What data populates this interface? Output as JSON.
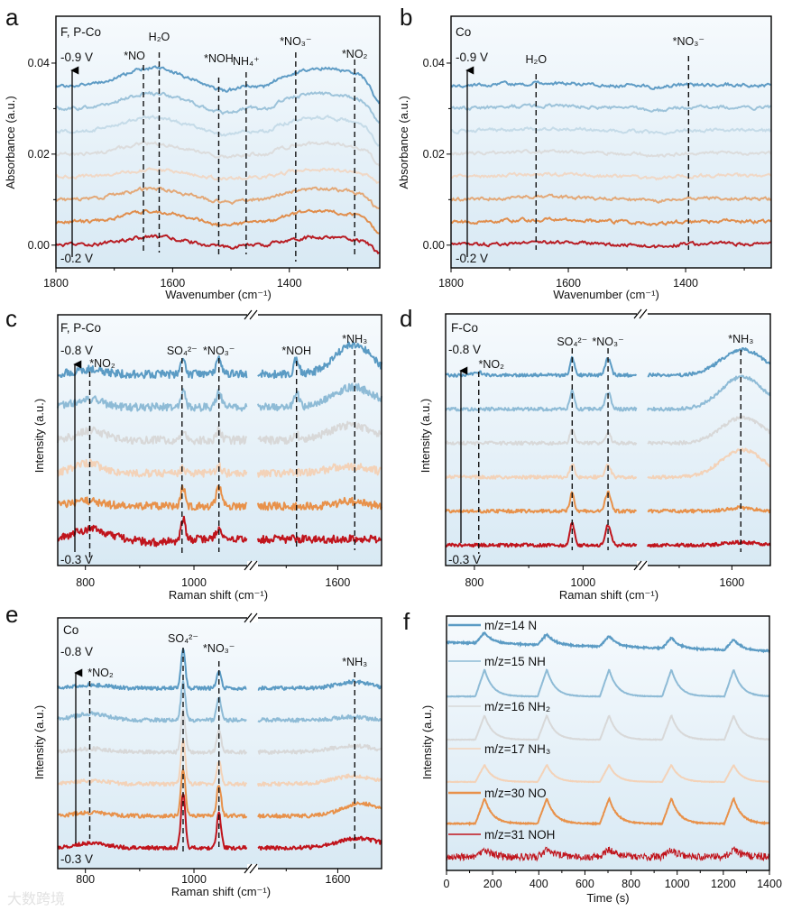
{
  "figure": {
    "watermark": "大数跨境"
  },
  "chart_data": [
    {
      "panel": "a",
      "type": "line",
      "title": "F, P-Co",
      "xlabel": "Wavenumber (cm⁻¹)",
      "ylabel": "Absorbance (a.u.)",
      "xlim": [
        1800,
        1245
      ],
      "ylim": [
        -0.005,
        0.0503
      ],
      "xticks": [
        {
          "v": 1800,
          "label": "1800"
        },
        {
          "v": 1600,
          "label": "1600"
        },
        {
          "v": 1400,
          "label": "1400"
        }
      ],
      "xminor": [
        1700,
        1500,
        1300
      ],
      "yticks": [
        {
          "v": 0,
          "label": "0.00"
        },
        {
          "v": 0.02,
          "label": "0.02"
        },
        {
          "v": 0.04,
          "label": "0.04"
        }
      ],
      "yminor": [
        0.01,
        0.03
      ],
      "potential_start": "-0.2 V",
      "potential_end": "-0.9 V",
      "profile": [
        [
          1635,
          0.003,
          50
        ],
        [
          1345,
          0.003,
          65
        ],
        [
          1440,
          -0.001,
          15
        ],
        [
          1510,
          -0.001,
          25
        ],
        [
          1245,
          -0.004,
          12
        ]
      ],
      "series": [
        {
          "offset": 0.0,
          "scale": 0.6,
          "color": "#b81d24"
        },
        {
          "offset": 0.005,
          "scale": 0.8,
          "color": "#e08d4c"
        },
        {
          "offset": 0.01,
          "scale": 0.8,
          "color": "#e3a877"
        },
        {
          "offset": 0.015,
          "scale": 0.5,
          "color": "#f0d8c6"
        },
        {
          "offset": 0.02,
          "scale": 0.8,
          "color": "#dcdcdc"
        },
        {
          "offset": 0.025,
          "scale": 1.0,
          "color": "#c5dbe8"
        },
        {
          "offset": 0.03,
          "scale": 1.1,
          "color": "#9dc3da"
        },
        {
          "offset": 0.035,
          "scale": 1.3,
          "color": "#5f9cc5"
        }
      ],
      "annotations": [
        {
          "label": "*NO",
          "x": 1650
        },
        {
          "label": "H₂O",
          "x": 1623
        },
        {
          "label": "*NOH",
          "x": 1521
        },
        {
          "label": "NH₄⁺",
          "x": 1474
        },
        {
          "label": "*NO₃⁻",
          "x": 1389
        },
        {
          "label": "*NO₂",
          "x": 1288
        }
      ]
    },
    {
      "panel": "b",
      "type": "line",
      "title": "Co",
      "xlabel": "Wavenumber (cm⁻¹)",
      "ylabel": "Absorbance (a.u.)",
      "xlim": [
        1800,
        1254
      ],
      "ylim": [
        -0.005,
        0.0503
      ],
      "xticks": [
        {
          "v": 1800,
          "label": "1800"
        },
        {
          "v": 1600,
          "label": "1600"
        },
        {
          "v": 1400,
          "label": "1400"
        }
      ],
      "xminor": [
        1700,
        1500,
        1300
      ],
      "yticks": [
        {
          "v": 0,
          "label": "0.00"
        },
        {
          "v": 0.02,
          "label": "0.02"
        },
        {
          "v": 0.04,
          "label": "0.04"
        }
      ],
      "yminor": [
        0.01,
        0.03
      ],
      "potential_start": "-0.2 V",
      "potential_end": "-0.9 V",
      "profile": [
        [
          1640,
          0.0006,
          70
        ],
        [
          1450,
          -0.0005,
          15
        ],
        [
          1330,
          0.0003,
          60
        ]
      ],
      "series": [
        {
          "offset": 0.0,
          "scale": 1,
          "color": "#b81d24"
        },
        {
          "offset": 0.005,
          "scale": 1,
          "color": "#e08d4c"
        },
        {
          "offset": 0.01,
          "scale": 1,
          "color": "#e3a877"
        },
        {
          "offset": 0.015,
          "scale": 1,
          "color": "#f0d8c6"
        },
        {
          "offset": 0.02,
          "scale": 1,
          "color": "#dcdcdc"
        },
        {
          "offset": 0.025,
          "scale": 1,
          "color": "#c5dbe8"
        },
        {
          "offset": 0.03,
          "scale": 1,
          "color": "#9dc3da"
        },
        {
          "offset": 0.035,
          "scale": 1,
          "color": "#5f9cc5"
        }
      ],
      "annotations": [
        {
          "label": "H₂O",
          "x": 1655
        },
        {
          "label": "*NO₃⁻",
          "x": 1395
        }
      ]
    },
    {
      "panel": "c",
      "type": "line",
      "title": "F, P-Co",
      "xlabel": "Raman shift (cm⁻¹)",
      "ylabel": "Intensity (a.u.)",
      "x_segments": [
        [
          749,
          1103
        ],
        [
          1440,
          1685
        ]
      ],
      "ylim": [
        -0.8,
        6.8
      ],
      "xticks": [
        {
          "v": 800,
          "label": "800"
        },
        {
          "v": 1000,
          "label": "1000"
        },
        {
          "v": 1600,
          "label": "1600"
        }
      ],
      "xminor": [
        900,
        1500
      ],
      "potential_start": "-0.3 V",
      "potential_end": "-0.8 V",
      "noise": 0.12,
      "series": [
        {
          "offset": 0,
          "color": "#c0141c",
          "peaks": [
            [
              980,
              0.65,
              4
            ],
            [
              1046,
              0.35,
              5
            ],
            [
              810,
              0.3,
              30
            ],
            [
              930,
              -0.1,
              30
            ]
          ]
        },
        {
          "offset": 1,
          "color": "#e8914a",
          "peaks": [
            [
              980,
              0.55,
              4
            ],
            [
              1046,
              0.55,
              5
            ],
            [
              800,
              0.15,
              30
            ],
            [
              1625,
              0.15,
              25
            ]
          ]
        },
        {
          "offset": 2,
          "color": "#f3d2b8",
          "peaks": [
            [
              980,
              0.15,
              4
            ],
            [
              1046,
              0.2,
              5
            ],
            [
              805,
              0.3,
              25
            ],
            [
              1620,
              0.2,
              40
            ]
          ]
        },
        {
          "offset": 3,
          "color": "#d8d8d8",
          "peaks": [
            [
              980,
              0.25,
              4
            ],
            [
              1046,
              0.3,
              5
            ],
            [
              810,
              0.3,
              25
            ],
            [
              1625,
              0.45,
              40
            ],
            [
              1520,
              0.15,
              5
            ]
          ]
        },
        {
          "offset": 4,
          "color": "#8ebbd6",
          "peaks": [
            [
              980,
              0.55,
              4
            ],
            [
              1046,
              0.45,
              5
            ],
            [
              805,
              0.25,
              25
            ],
            [
              1520,
              0.4,
              5
            ],
            [
              1630,
              0.6,
              40
            ]
          ]
        },
        {
          "offset": 5,
          "color": "#5b9bc4",
          "peaks": [
            [
              980,
              0.45,
              4
            ],
            [
              1046,
              0.45,
              5
            ],
            [
              810,
              0.15,
              25
            ],
            [
              1520,
              0.45,
              5
            ],
            [
              1630,
              0.9,
              35
            ]
          ]
        }
      ],
      "annotations": [
        {
          "label": "*NO₂",
          "x": 808
        },
        {
          "label": "SO₄²⁻",
          "x": 978
        },
        {
          "label": "*NO₃⁻",
          "x": 1046
        },
        {
          "label": "*NOH",
          "x": 1520
        },
        {
          "label": "*NH₃",
          "x": 1633
        }
      ]
    },
    {
      "panel": "d",
      "type": "line",
      "title": "F-Co",
      "xlabel": "Raman shift (cm⁻¹)",
      "ylabel": "Intensity (a.u.)",
      "x_segments": [
        [
          747,
          1104
        ],
        [
          1435,
          1673
        ]
      ],
      "ylim": [
        -0.6,
        6.8
      ],
      "xticks": [
        {
          "v": 800,
          "label": "800"
        },
        {
          "v": 1000,
          "label": "1000"
        },
        {
          "v": 1600,
          "label": "1600"
        }
      ],
      "xminor": [
        900,
        1500
      ],
      "potential_start": "-0.3 V",
      "potential_end": "-0.8 V",
      "noise": 0.05,
      "series": [
        {
          "offset": 0,
          "color": "#c0141c",
          "peaks": [
            [
              980,
              0.67,
              4
            ],
            [
              1046,
              0.6,
              5
            ],
            [
              1617,
              0.08,
              30
            ]
          ]
        },
        {
          "offset": 1,
          "color": "#e8914a",
          "peaks": [
            [
              980,
              0.55,
              4
            ],
            [
              1046,
              0.55,
              5
            ],
            [
              1617,
              0.1,
              25
            ]
          ]
        },
        {
          "offset": 2,
          "color": "#f3d2b8",
          "peaks": [
            [
              980,
              0.4,
              4
            ],
            [
              1046,
              0.35,
              5
            ],
            [
              1620,
              0.8,
              40
            ]
          ]
        },
        {
          "offset": 3,
          "color": "#d8d8d8",
          "peaks": [
            [
              980,
              0.4,
              4
            ],
            [
              1046,
              0.3,
              5
            ],
            [
              1620,
              0.75,
              40
            ]
          ]
        },
        {
          "offset": 4,
          "color": "#8ebbd6",
          "peaks": [
            [
              980,
              0.55,
              4
            ],
            [
              1046,
              0.5,
              5
            ],
            [
              1620,
              0.95,
              40
            ]
          ]
        },
        {
          "offset": 5,
          "color": "#5b9bc4",
          "peaks": [
            [
              980,
              0.5,
              4
            ],
            [
              1046,
              0.5,
              5
            ],
            [
              1620,
              0.75,
              40
            ],
            [
              808,
              0.08,
              8
            ]
          ]
        }
      ],
      "annotations": [
        {
          "label": "*NO₂",
          "x": 808
        },
        {
          "label": "SO₄²⁻",
          "x": 980
        },
        {
          "label": "*NO₃⁻",
          "x": 1046
        },
        {
          "label": "*NH₃",
          "x": 1617
        }
      ]
    },
    {
      "panel": "e",
      "type": "line",
      "title": "Co",
      "xlabel": "Raman shift (cm⁻¹)",
      "ylabel": "Intensity (a.u.)",
      "x_segments": [
        [
          749,
          1103
        ],
        [
          1440,
          1685
        ]
      ],
      "ylim": [
        -0.65,
        7.2
      ],
      "xticks": [
        {
          "v": 800,
          "label": "800"
        },
        {
          "v": 1000,
          "label": "1000"
        },
        {
          "v": 1600,
          "label": "1600"
        }
      ],
      "xminor": [
        900,
        1500
      ],
      "potential_start": "-0.3 V",
      "potential_end": "-0.8 V",
      "noise": 0.06,
      "series": [
        {
          "offset": 0,
          "color": "#c0141c",
          "peaks": [
            [
              980,
              1.7,
              4
            ],
            [
              1046,
              1.07,
              4
            ],
            [
              1640,
              0.3,
              40
            ],
            [
              810,
              0.15,
              30
            ]
          ]
        },
        {
          "offset": 1,
          "color": "#e8914a",
          "peaks": [
            [
              980,
              1.5,
              4
            ],
            [
              1046,
              1.0,
              4
            ],
            [
              1645,
              0.4,
              35
            ],
            [
              810,
              0.1,
              30
            ]
          ]
        },
        {
          "offset": 2,
          "color": "#f3d2b8",
          "peaks": [
            [
              980,
              1.4,
              4
            ],
            [
              1046,
              0.7,
              4
            ],
            [
              1630,
              0.25,
              40
            ],
            [
              810,
              0.1,
              30
            ]
          ]
        },
        {
          "offset": 3,
          "color": "#d8d8d8",
          "peaks": [
            [
              980,
              1.3,
              4
            ],
            [
              1046,
              0.7,
              4
            ],
            [
              1630,
              0.2,
              40
            ],
            [
              810,
              0.1,
              30
            ]
          ]
        },
        {
          "offset": 4,
          "color": "#8ebbd6",
          "peaks": [
            [
              980,
              1.2,
              4
            ],
            [
              1046,
              0.7,
              4
            ],
            [
              1625,
              0.1,
              30
            ],
            [
              810,
              0.2,
              30
            ]
          ]
        },
        {
          "offset": 5,
          "color": "#5b9bc4",
          "peaks": [
            [
              980,
              1.2,
              4
            ],
            [
              1046,
              0.55,
              4
            ],
            [
              1630,
              0.2,
              30
            ],
            [
              810,
              0.1,
              30
            ]
          ]
        }
      ],
      "annotations": [
        {
          "label": "*NO₂",
          "x": 808
        },
        {
          "label": "SO₄²⁻",
          "x": 980
        },
        {
          "label": "*NO₃⁻",
          "x": 1046
        },
        {
          "label": "*NH₃",
          "x": 1633
        }
      ]
    },
    {
      "panel": "f",
      "type": "line",
      "xlabel": "Time (s)",
      "ylabel": "Intensity (a.u.)",
      "xlim": [
        0,
        1400
      ],
      "ylim": [
        0,
        10
      ],
      "xticks": [
        {
          "v": 0,
          "label": "0"
        },
        {
          "v": 200,
          "label": "200"
        },
        {
          "v": 400,
          "label": "400"
        },
        {
          "v": 600,
          "label": "600"
        },
        {
          "v": 800,
          "label": "800"
        },
        {
          "v": 1000,
          "label": "1000"
        },
        {
          "v": 1200,
          "label": "1200"
        },
        {
          "v": 1400,
          "label": "1400"
        }
      ],
      "xminor": [
        100,
        300,
        500,
        700,
        900,
        1100,
        1300
      ],
      "pulse_times": [
        165,
        435,
        705,
        975,
        1245
      ],
      "legend_position": "left, above each trace",
      "series": [
        {
          "name": "m/z=14 N",
          "color": "#5b9bc4",
          "baseline": 8.97,
          "peak": 0.43,
          "noise": 0.03,
          "drift": -0.35
        },
        {
          "name": "m/z=15 NH",
          "color": "#8ebbd6",
          "baseline": 6.84,
          "peak": 1.06,
          "noise": 0.01,
          "drift": 0
        },
        {
          "name": "m/z=16 NH₂",
          "color": "#d8d8d8",
          "baseline": 5.14,
          "peak": 0.96,
          "noise": 0.01,
          "drift": 0
        },
        {
          "name": "m/z=17 NH₃",
          "color": "#f3d2b8",
          "baseline": 3.48,
          "peak": 0.67,
          "noise": 0.01,
          "drift": 0
        },
        {
          "name": "m/z=30 NO",
          "color": "#e8914a",
          "baseline": 1.84,
          "peak": 1.0,
          "noise": 0.02,
          "drift": 0
        },
        {
          "name": "m/z=31 NOH",
          "color": "#c0141c",
          "baseline": 0.53,
          "peak": 0.3,
          "noise": 0.14,
          "drift": 0
        }
      ]
    }
  ]
}
